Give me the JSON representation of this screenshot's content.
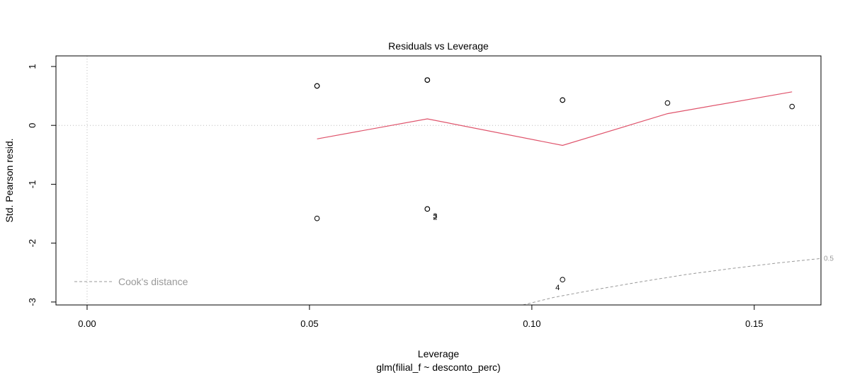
{
  "chart_data": {
    "type": "scatter",
    "title": "Residuals vs Leverage",
    "xlabel": "Leverage",
    "subtitle": "glm(filial_f ~ desconto_perc)",
    "ylabel": "Std. Pearson resid.",
    "xlim": [
      -0.007,
      0.165
    ],
    "ylim": [
      -3.05,
      1.18
    ],
    "x_ticks": [
      0.0,
      0.05,
      0.1,
      0.15
    ],
    "x_tick_labels": [
      "0.00",
      "0.05",
      "0.10",
      "0.15"
    ],
    "y_ticks": [
      1,
      0,
      -1,
      -2,
      -3
    ],
    "y_tick_labels": [
      "1",
      "0",
      "-1",
      "-2",
      "-3"
    ],
    "points": [
      {
        "x": 0.0517,
        "y": 0.67
      },
      {
        "x": 0.0517,
        "y": 0.67
      },
      {
        "x": 0.0517,
        "y": -1.58
      },
      {
        "x": 0.0765,
        "y": 0.77
      },
      {
        "x": 0.0765,
        "y": 0.77
      },
      {
        "x": 0.0765,
        "y": 0.77
      },
      {
        "x": 0.0765,
        "y": -1.42,
        "label": "2"
      },
      {
        "x": 0.0765,
        "y": -1.42,
        "label": "3"
      },
      {
        "x": 0.1069,
        "y": 0.43
      },
      {
        "x": 0.1069,
        "y": 0.43
      },
      {
        "x": 0.1069,
        "y": -2.62,
        "label": "4"
      },
      {
        "x": 0.1305,
        "y": 0.38
      },
      {
        "x": 0.1585,
        "y": 0.32
      }
    ],
    "smoother": {
      "color": "#DF536B",
      "x": [
        0.0517,
        0.0765,
        0.1069,
        0.1305,
        0.1585
      ],
      "y": [
        -0.23,
        0.11,
        -0.34,
        0.2,
        0.57
      ]
    },
    "cooks_distance": {
      "label": "Cook's distance",
      "level_label": "0.5",
      "color": "#999999",
      "x": [
        0.098,
        0.105,
        0.115,
        0.125,
        0.135,
        0.145,
        0.155,
        0.165
      ],
      "y": [
        -3.05,
        -2.92,
        -2.78,
        -2.65,
        -2.53,
        -2.43,
        -2.34,
        -2.26
      ]
    },
    "reference_lines": {
      "h": 0,
      "v": 0,
      "style": "dotted",
      "color": "#bbbbbb"
    },
    "legend_position": "bottom-left"
  }
}
